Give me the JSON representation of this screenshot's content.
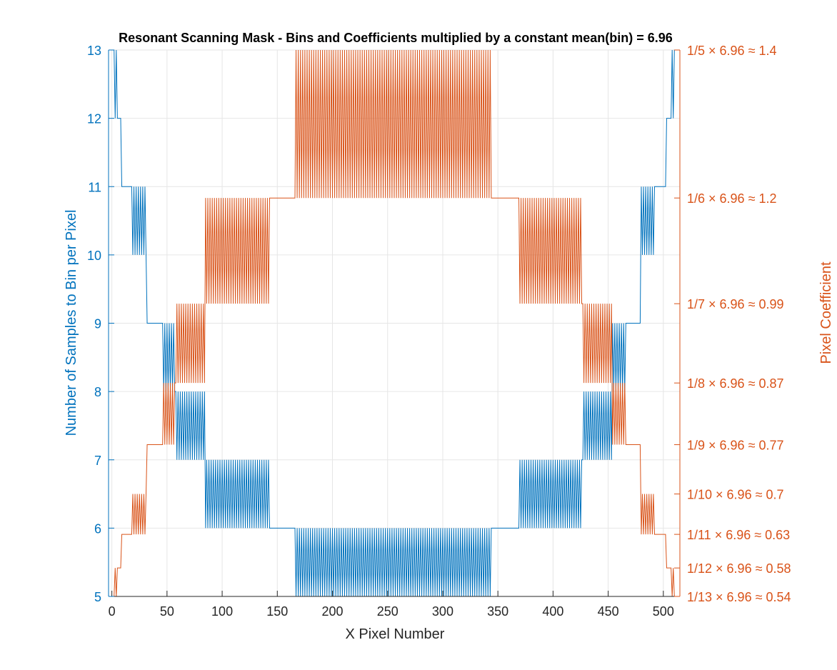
{
  "chart_data": {
    "type": "line",
    "title": "Resonant Scanning Mask - Bins and Coefficients multiplied by a constant mean(bin) = 6.96",
    "xlabel": "X Pixel Number",
    "ylabel_left": "Number of Samples to Bin per Pixel",
    "ylabel_right": "Pixel Coefficient",
    "xlim": [
      -3,
      515
    ],
    "ylim_left": [
      5,
      13
    ],
    "ylim_right": [
      0.5354,
      1.392
    ],
    "grid": true,
    "x_ticks": [
      "0",
      "50",
      "100",
      "150",
      "200",
      "250",
      "300",
      "350",
      "400",
      "450",
      "500"
    ],
    "x_tick_values": [
      0,
      50,
      100,
      150,
      200,
      250,
      300,
      350,
      400,
      450,
      500
    ],
    "y_left_ticks": [
      "5",
      "6",
      "7",
      "8",
      "9",
      "10",
      "11",
      "12",
      "13"
    ],
    "y_left_tick_values": [
      5,
      6,
      7,
      8,
      9,
      10,
      11,
      12,
      13
    ],
    "y_right_ticks": [
      "1/5 × 6.96 ≈ 1.4",
      "1/6 × 6.96 ≈ 1.2",
      "1/7 × 6.96 ≈ 0.99",
      "1/8 × 6.96 ≈ 0.87",
      "1/9 × 6.96 ≈ 0.77",
      "1/10 × 6.96 ≈ 0.7",
      "1/11 × 6.96 ≈ 0.63",
      "1/12 × 6.96 ≈ 0.58",
      "1/13 × 6.96 ≈ 0.54"
    ],
    "y_right_tick_values": [
      1.392,
      1.16,
      0.9943,
      0.87,
      0.7733,
      0.696,
      0.6327,
      0.58,
      0.5354
    ],
    "series": [
      {
        "name": "bins",
        "axis": "left",
        "color": "#0072BD",
        "x_range": [
          0,
          511
        ],
        "description_segments": [
          {
            "x": [
              0,
              2
            ],
            "level": 13
          },
          {
            "x": [
              2,
              5
            ],
            "alt": [
              12,
              13
            ]
          },
          {
            "x": [
              5,
              9
            ],
            "level": 12
          },
          {
            "x": [
              9,
              19
            ],
            "level": 11
          },
          {
            "x": [
              19,
              32
            ],
            "alt": [
              10,
              11
            ]
          },
          {
            "x": [
              32,
              46
            ],
            "level": 9
          },
          {
            "x": [
              46,
              58
            ],
            "alt": [
              8,
              9
            ]
          },
          {
            "x": [
              58,
              85
            ],
            "alt": [
              7,
              8
            ]
          },
          {
            "x": [
              85,
              143
            ],
            "alt": [
              6,
              7
            ]
          },
          {
            "x": [
              143,
              167
            ],
            "level": 6
          },
          {
            "x": [
              167,
              345
            ],
            "alt": [
              5,
              6
            ]
          },
          {
            "x": [
              345,
              369
            ],
            "level": 6
          },
          {
            "x": [
              369,
              427
            ],
            "alt": [
              6,
              7
            ]
          },
          {
            "x": [
              427,
              454
            ],
            "alt": [
              7,
              8
            ]
          },
          {
            "x": [
              454,
              466
            ],
            "alt": [
              8,
              9
            ]
          },
          {
            "x": [
              466,
              480
            ],
            "level": 9
          },
          {
            "x": [
              480,
              493
            ],
            "alt": [
              10,
              11
            ]
          },
          {
            "x": [
              493,
              503
            ],
            "level": 11
          },
          {
            "x": [
              503,
              507
            ],
            "level": 12
          },
          {
            "x": [
              507,
              510
            ],
            "alt": [
              12,
              13
            ]
          },
          {
            "x": [
              510,
              511
            ],
            "level": 13
          }
        ]
      },
      {
        "name": "coefficients",
        "axis": "right",
        "color": "#D95319",
        "formula": "6.96 / bins"
      }
    ],
    "colors": {
      "left_axis": "#0072BD",
      "right_axis": "#D95319",
      "grid": "#e6e6e6",
      "axis": "#262626"
    }
  }
}
